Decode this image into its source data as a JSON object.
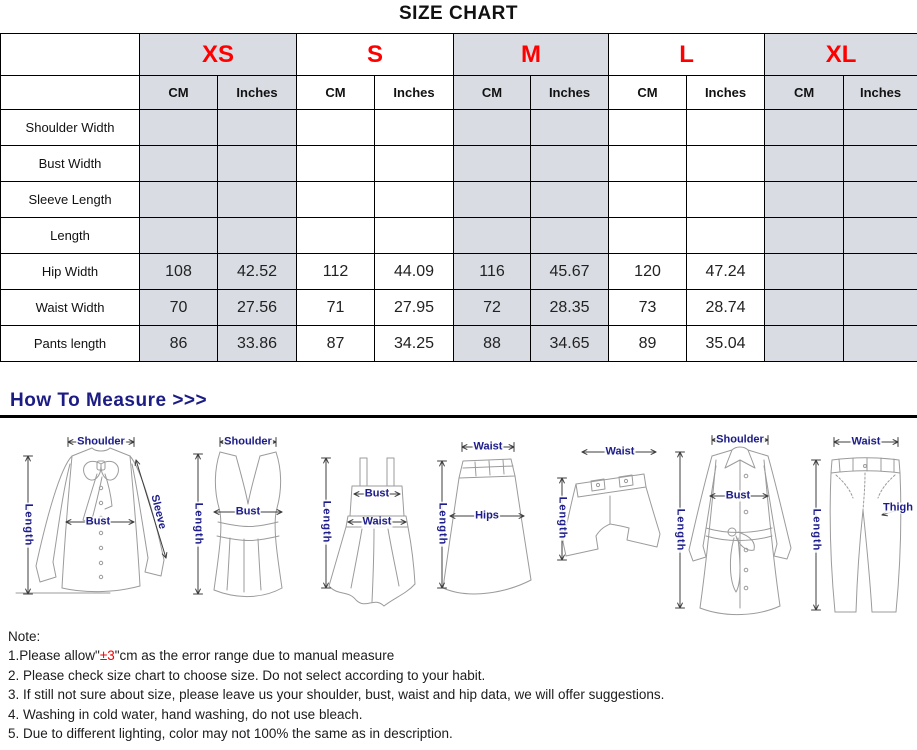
{
  "title": "SIZE CHART",
  "colors": {
    "size_label_red": "#fe0000",
    "table_shade_gray": "#d9dde3",
    "measure_navy": "#1c1c85",
    "note_red": "#f40000"
  },
  "size_chart": {
    "sizes": [
      "XS",
      "S",
      "M",
      "L",
      "XL"
    ],
    "unit_headers": [
      "CM",
      "Inches"
    ],
    "rows": [
      {
        "label": "Shoulder Width",
        "values": [
          "",
          "",
          "",
          "",
          "",
          "",
          "",
          "",
          "",
          ""
        ]
      },
      {
        "label": "Bust Width",
        "values": [
          "",
          "",
          "",
          "",
          "",
          "",
          "",
          "",
          "",
          ""
        ]
      },
      {
        "label": "Sleeve Length",
        "values": [
          "",
          "",
          "",
          "",
          "",
          "",
          "",
          "",
          "",
          ""
        ]
      },
      {
        "label": "Length",
        "values": [
          "",
          "",
          "",
          "",
          "",
          "",
          "",
          "",
          "",
          ""
        ]
      },
      {
        "label": "Hip Width",
        "values": [
          "108",
          "42.52",
          "112",
          "44.09",
          "116",
          "45.67",
          "120",
          "47.24",
          "",
          ""
        ]
      },
      {
        "label": "Waist Width",
        "values": [
          "70",
          "27.56",
          "71",
          "27.95",
          "72",
          "28.35",
          "73",
          "28.74",
          "",
          ""
        ]
      },
      {
        "label": "Pants length",
        "values": [
          "86",
          "33.86",
          "87",
          "34.25",
          "88",
          "34.65",
          "89",
          "35.04",
          "",
          ""
        ]
      }
    ]
  },
  "how_to_measure": {
    "heading": "How To Measure >>>"
  },
  "figures": [
    {
      "name": "blouse",
      "labels": {
        "shoulder": "Shoulder",
        "length": "Length",
        "bust": "Bust",
        "sleeve": "Sleeve"
      }
    },
    {
      "name": "tank-top",
      "labels": {
        "shoulder": "Shoulder",
        "length": "Length",
        "bust": "Bust"
      }
    },
    {
      "name": "dress",
      "labels": {
        "length": "Length",
        "bust": "Bust",
        "waist": "Waist"
      }
    },
    {
      "name": "skirt",
      "labels": {
        "waist": "Waist",
        "length": "Length",
        "hips": "Hips"
      }
    },
    {
      "name": "shorts",
      "labels": {
        "waist": "Waist",
        "length": "Length"
      }
    },
    {
      "name": "coat",
      "labels": {
        "shoulder": "Shoulder",
        "length": "Length",
        "bust": "Bust"
      }
    },
    {
      "name": "pants",
      "labels": {
        "waist": "Waist",
        "length": "Length",
        "thigh": "Thigh"
      }
    }
  ],
  "notes": {
    "heading": "Note:",
    "item1_prefix": "1.Please allow\"",
    "item1_red": "±3",
    "item1_suffix": "\"cm as the error range due to manual measure",
    "items": [
      "2. Please check size chart to choose size. Do not select according to your habit.",
      "3. If still not sure about size, please leave us your shoulder, bust, waist and hip data, we will offer suggestions.",
      "4. Washing in cold water, hand washing, do not use bleach.",
      "5. Due to different lighting, color may not 100% the same as in description."
    ]
  }
}
